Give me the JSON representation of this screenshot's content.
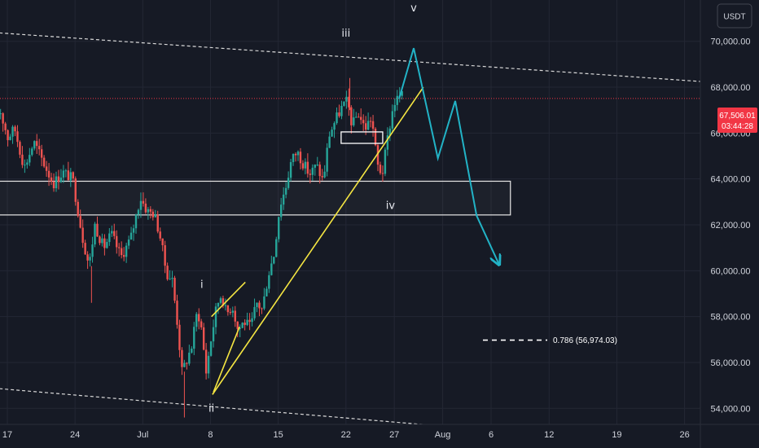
{
  "chart_data": {
    "type": "candlestick",
    "currency": "USDT",
    "ylim": [
      53300,
      71800
    ],
    "y_ticks": [
      {
        "value": 54000,
        "label": "54,000.00"
      },
      {
        "value": 56000,
        "label": "56,000.00"
      },
      {
        "value": 58000,
        "label": "58,000.00"
      },
      {
        "value": 60000,
        "label": "60,000.00"
      },
      {
        "value": 62000,
        "label": "62,000.00"
      },
      {
        "value": 64000,
        "label": "64,000.00"
      },
      {
        "value": 66000,
        "label": "66,000.00"
      },
      {
        "value": 68000,
        "label": "68,000.00"
      },
      {
        "value": 70000,
        "label": "70,000.00"
      }
    ],
    "x_ticks": [
      {
        "day": 0,
        "label": "17"
      },
      {
        "day": 7,
        "label": "24"
      },
      {
        "day": 14,
        "label": "Jul"
      },
      {
        "day": 21,
        "label": "8"
      },
      {
        "day": 28,
        "label": "15"
      },
      {
        "day": 35,
        "label": "22"
      },
      {
        "day": 40,
        "label": "27"
      },
      {
        "day": 45,
        "label": "Aug"
      },
      {
        "day": 50,
        "label": "6"
      },
      {
        "day": 56,
        "label": "12"
      },
      {
        "day": 63,
        "label": "19"
      },
      {
        "day": 70,
        "label": "26"
      }
    ],
    "price_path": [
      [
        -1.2,
        66600
      ],
      [
        -0.5,
        67000
      ],
      [
        0.3,
        65800
      ],
      [
        1.0,
        66200
      ],
      [
        2.0,
        64500
      ],
      [
        3.0,
        65600
      ],
      [
        4.0,
        64700
      ],
      [
        5.0,
        63800
      ],
      [
        6.0,
        64300
      ],
      [
        7.0,
        64000
      ],
      [
        8.0,
        61500
      ],
      [
        8.7,
        60200
      ],
      [
        9.3,
        62000
      ],
      [
        10.2,
        61000
      ],
      [
        11.0,
        61600
      ],
      [
        12.0,
        60600
      ],
      [
        13.0,
        61400
      ],
      [
        14.0,
        63200
      ],
      [
        14.7,
        62600
      ],
      [
        15.4,
        62500
      ],
      [
        16.0,
        61600
      ],
      [
        16.7,
        59900
      ],
      [
        17.3,
        59600
      ],
      [
        17.8,
        57800
      ],
      [
        18.3,
        55600
      ],
      [
        18.7,
        56000
      ],
      [
        19.3,
        56700
      ],
      [
        19.9,
        58300
      ],
      [
        20.3,
        57500
      ],
      [
        20.8,
        55600
      ],
      [
        21.3,
        57000
      ],
      [
        21.9,
        58500
      ],
      [
        22.4,
        59000
      ],
      [
        22.9,
        58100
      ],
      [
        23.5,
        58500
      ],
      [
        24.1,
        57400
      ],
      [
        24.7,
        57800
      ],
      [
        25.4,
        57500
      ],
      [
        26.0,
        58600
      ],
      [
        26.6,
        58300
      ],
      [
        27.2,
        59800
      ],
      [
        27.8,
        60700
      ],
      [
        28.4,
        62800
      ],
      [
        29.0,
        63600
      ],
      [
        29.6,
        64800
      ],
      [
        30.2,
        65200
      ],
      [
        30.8,
        64700
      ],
      [
        31.5,
        64200
      ],
      [
        32.2,
        64600
      ],
      [
        32.9,
        63900
      ],
      [
        33.5,
        65900
      ],
      [
        34.2,
        66600
      ],
      [
        34.8,
        67100
      ],
      [
        35.4,
        67400
      ],
      [
        35.9,
        66300
      ],
      [
        36.5,
        66900
      ],
      [
        37.2,
        66200
      ],
      [
        37.9,
        66700
      ],
      [
        38.5,
        64600
      ],
      [
        39.0,
        64200
      ],
      [
        39.6,
        65900
      ],
      [
        40.2,
        67300
      ],
      [
        40.8,
        67600
      ]
    ],
    "elliott_labels": [
      {
        "text": "i",
        "day": 20.1,
        "price": 59250
      },
      {
        "text": "ii",
        "day": 21.1,
        "price": 53850
      },
      {
        "text": "iii",
        "day": 35.0,
        "price": 70200
      },
      {
        "text": "iv",
        "day": 39.6,
        "price": 62700
      },
      {
        "text": "v",
        "day": 42.0,
        "price": 71300
      }
    ],
    "current_price": {
      "label": "67,506.01",
      "countdown": "03:44:28",
      "value": 67506.01
    },
    "fib_level": {
      "label": "0.786 (56,974.03)",
      "value": 56974.03
    },
    "channel_upper": [
      [
        -2,
        70400
      ],
      [
        75,
        68150
      ]
    ],
    "channel_lower": [
      [
        -2,
        54900
      ],
      [
        75,
        52150
      ]
    ],
    "support_zone": {
      "from_day": -2,
      "to_day": 52,
      "top": 63900,
      "bottom": 62430
    },
    "small_box": {
      "from_day": 34.5,
      "to_day": 38.8,
      "top": 66050,
      "bottom": 65550
    },
    "trend_lines": [
      {
        "points": [
          [
            21.2,
            54600
          ],
          [
            43.0,
            68000
          ]
        ]
      },
      {
        "points": [
          [
            21.3,
            54700
          ],
          [
            24.0,
            57550
          ]
        ]
      },
      {
        "points": [
          [
            21.1,
            58000
          ],
          [
            24.6,
            59500
          ]
        ]
      }
    ],
    "projection_path": [
      [
        40.5,
        67500
      ],
      [
        42.0,
        69700
      ],
      [
        44.5,
        64900
      ],
      [
        46.3,
        67400
      ],
      [
        48.5,
        62400
      ],
      [
        50.8,
        60300
      ]
    ],
    "colors": {
      "background": "#161a25",
      "up": "#26a69a",
      "down": "#ef5350",
      "grid": "#232734",
      "projection": "#22b3c6",
      "trend": "#f5e642",
      "price_line": "#f23645"
    }
  }
}
